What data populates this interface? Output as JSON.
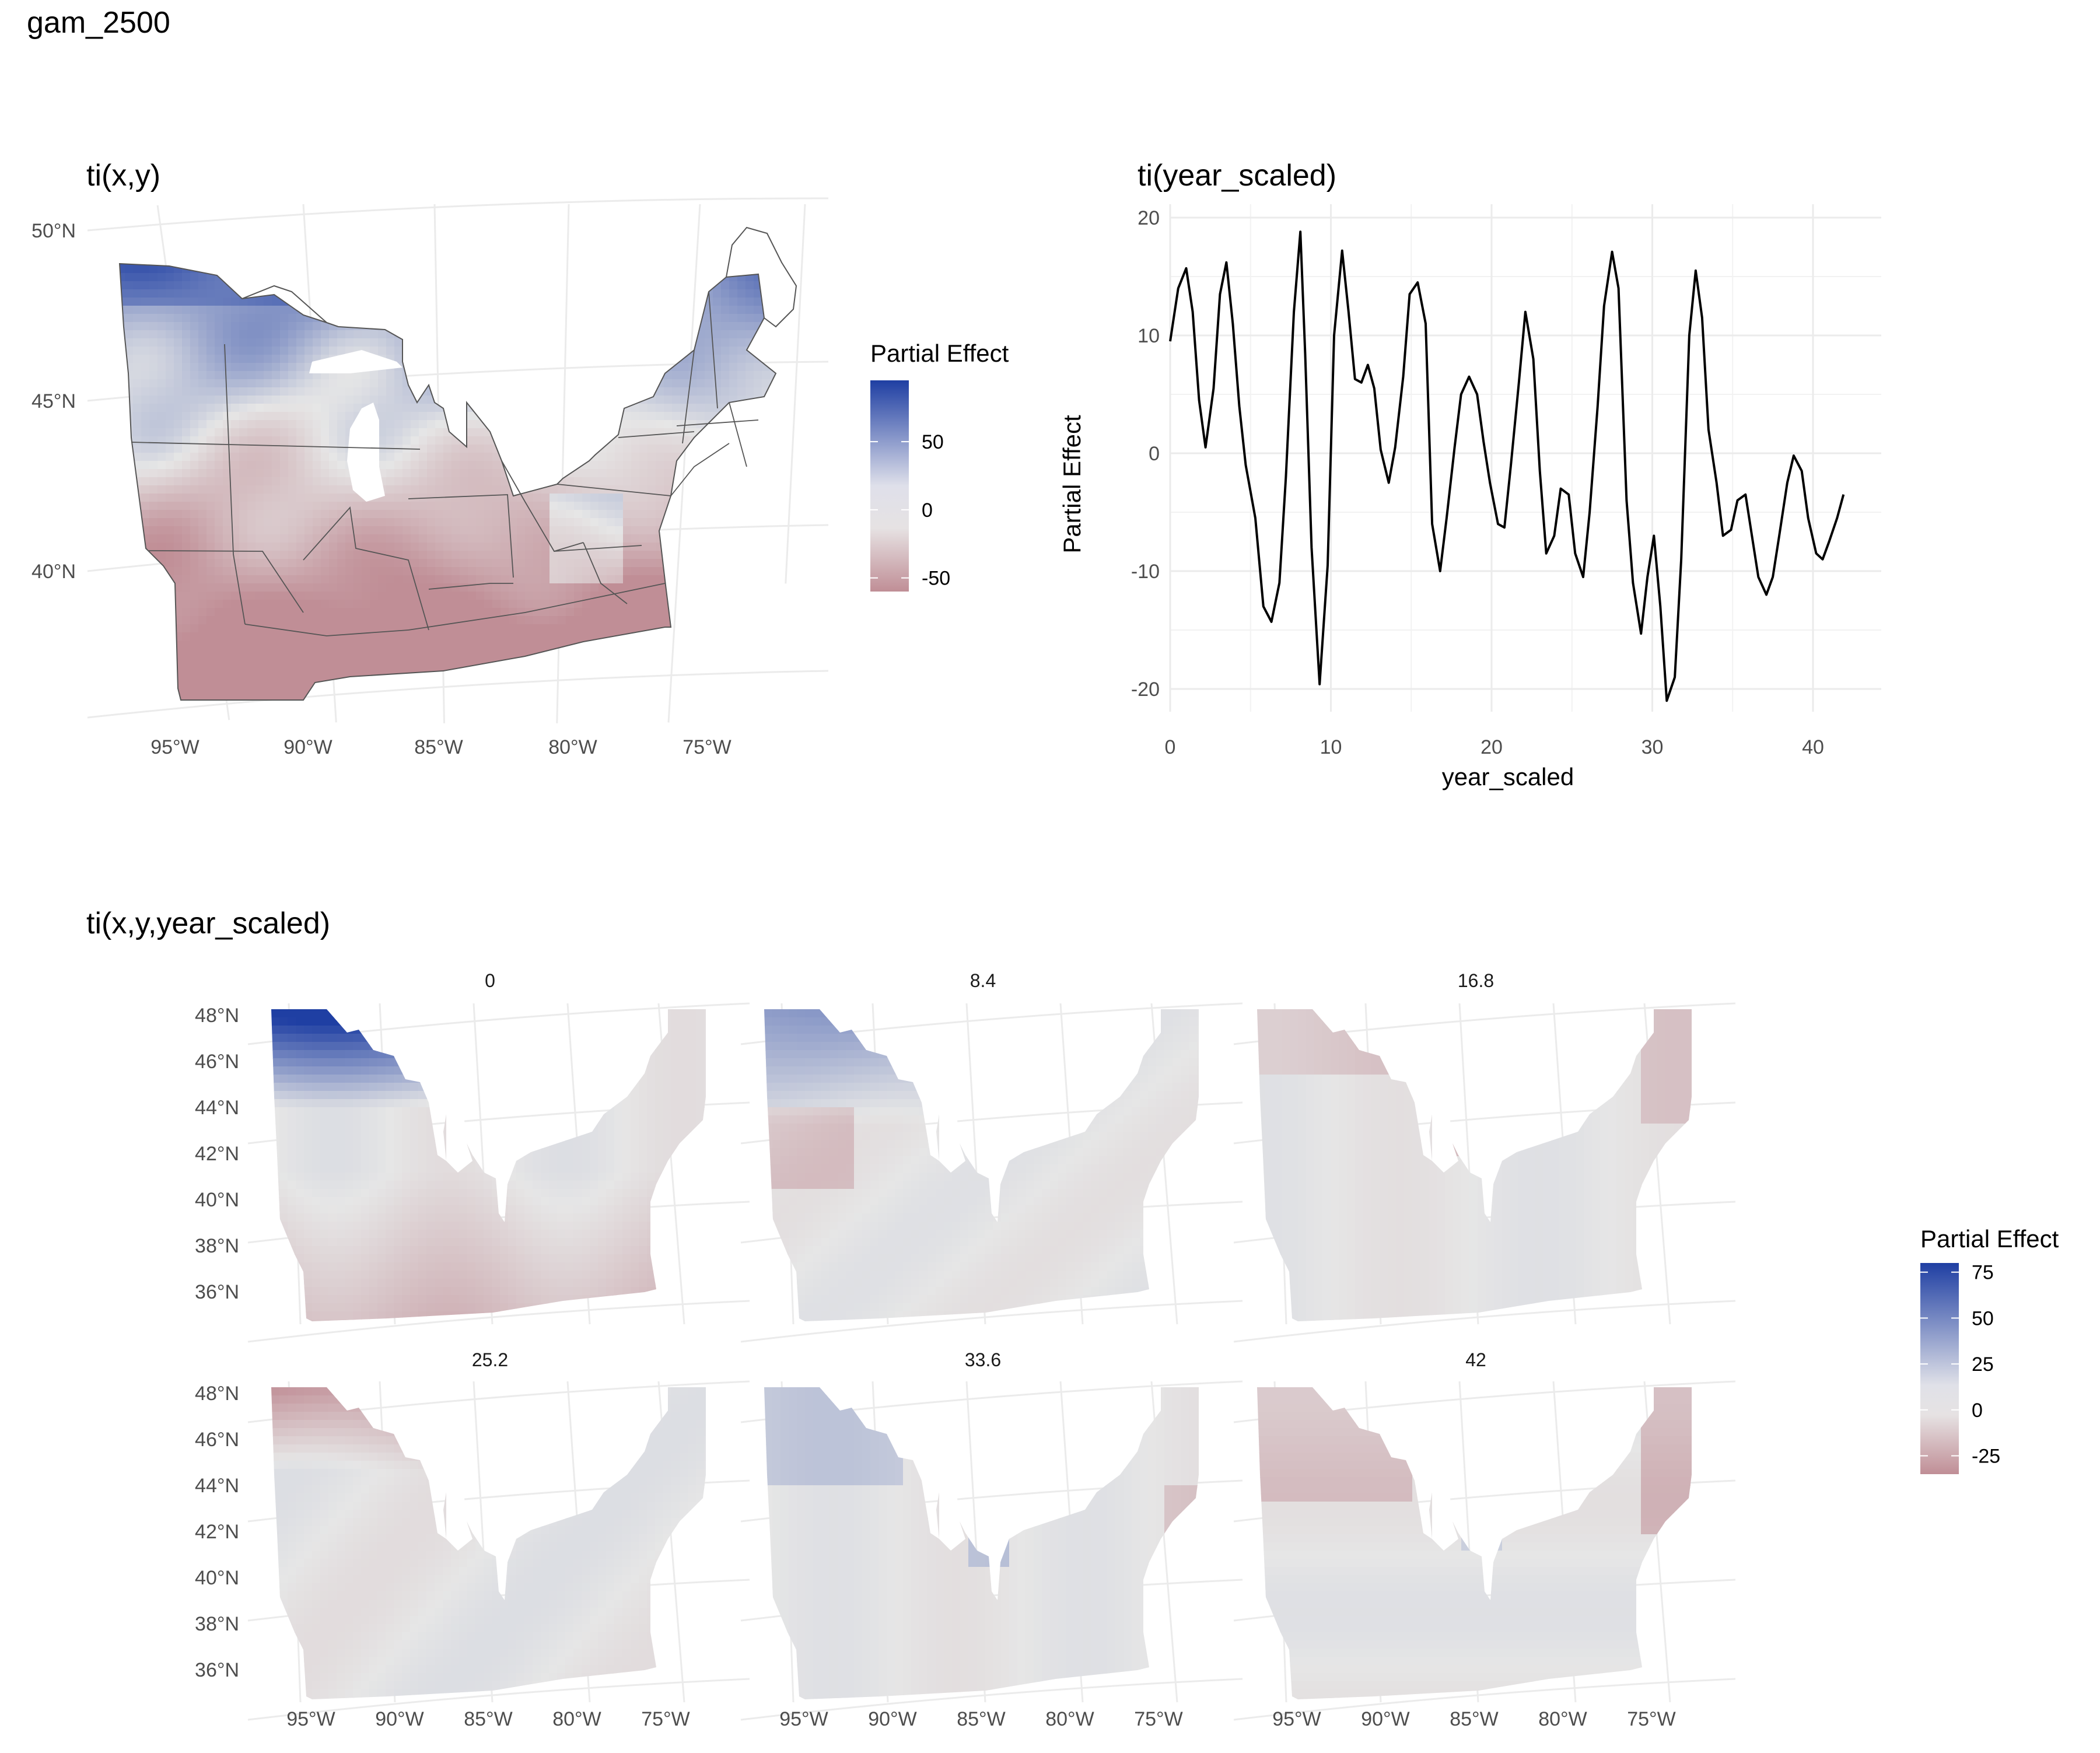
{
  "page_title": "gam_2500",
  "colors": {
    "high": "#1f3fa3",
    "mid": "#e6e6e6",
    "low": "#c08e96",
    "grid": "#ebebeb",
    "line": "#000000",
    "border": "#555555"
  },
  "chart_data": [
    {
      "type": "heatmap",
      "title": "ti(x,y)",
      "x_tick_labels": [
        "95°W",
        "90°W",
        "85°W",
        "80°W",
        "75°W"
      ],
      "y_tick_labels": [
        "40°N",
        "45°N",
        "50°N"
      ],
      "legend": {
        "title": "Partial Effect",
        "ticks": [
          "50",
          "0",
          "-50"
        ],
        "range": [
          -60,
          95
        ]
      },
      "grid": true
    },
    {
      "type": "line",
      "title": "ti(year_scaled)",
      "xlabel": "year_scaled",
      "ylabel": "Partial Effect",
      "x_tick_labels": [
        "0",
        "10",
        "20",
        "30",
        "40"
      ],
      "y_tick_labels": [
        "20",
        "10",
        "0",
        "-10",
        "-20"
      ],
      "xlim": [
        0,
        42
      ],
      "ylim": [
        -22,
        20
      ],
      "grid": true,
      "x": [
        0,
        0.5,
        1,
        1.4,
        1.8,
        2.2,
        2.7,
        3.1,
        3.5,
        3.9,
        4.3,
        4.7,
        5.3,
        5.8,
        6.3,
        6.8,
        7.2,
        7.7,
        8.1,
        8.4,
        8.8,
        9.3,
        9.8,
        10.2,
        10.7,
        11.1,
        11.5,
        11.9,
        12.3,
        12.7,
        13.1,
        13.6,
        14.0,
        14.5,
        14.9,
        15.4,
        15.9,
        16.3,
        16.8,
        17.2,
        17.7,
        18.1,
        18.6,
        19.1,
        19.5,
        19.9,
        20.4,
        20.8,
        21.2,
        21.7,
        22.1,
        22.6,
        23.0,
        23.4,
        23.9,
        24.3,
        24.8,
        25.2,
        25.7,
        26.1,
        26.6,
        27.0,
        27.5,
        27.9,
        28.4,
        28.8,
        29.3,
        29.7,
        30.1,
        30.5,
        30.9,
        31.4,
        31.8,
        32.3,
        32.7,
        33.1,
        33.5,
        34.0,
        34.4,
        34.9,
        35.3,
        35.8,
        36.2,
        36.6,
        37.1,
        37.5,
        37.9,
        38.4,
        38.8,
        39.3,
        39.7,
        40.2,
        40.6,
        41.0,
        41.5,
        41.9
      ],
      "values": [
        9.5,
        14,
        15.7,
        12,
        4.5,
        0.5,
        5.5,
        13.5,
        16.2,
        11,
        4,
        -1,
        -5.5,
        -13,
        -14.3,
        -11,
        -2,
        12,
        18.8,
        8.5,
        -8,
        -19.6,
        -9.5,
        10,
        17.2,
        12,
        6.3,
        6,
        7.5,
        5.5,
        0.3,
        -2.5,
        0.5,
        6.5,
        13.5,
        14.5,
        11,
        -6,
        -10,
        -5.5,
        0.5,
        5,
        6.5,
        5,
        1,
        -2.5,
        -6,
        -6.3,
        -1,
        6,
        12,
        8,
        -1.5,
        -8.5,
        -7,
        -3,
        -3.5,
        -8.5,
        -10.5,
        -5,
        4,
        12.5,
        17.1,
        14,
        -4,
        -11,
        -15.3,
        -10.5,
        -7,
        -13,
        -21,
        -19,
        -9,
        10,
        15.5,
        11.5,
        2,
        -2.5,
        -7,
        -6.5,
        -4,
        -3.5,
        -7,
        -10.5,
        -12,
        -10.5,
        -7,
        -2.5,
        -0.2,
        -1.5,
        -5.5,
        -8.5,
        -9,
        -7.5,
        -5.5,
        -3.5
      ]
    },
    {
      "type": "heatmap",
      "title": "ti(x,y,year_scaled)",
      "facets": [
        "0",
        "8.4",
        "16.8",
        "25.2",
        "33.6",
        "42"
      ],
      "x_tick_labels": [
        "95°W",
        "90°W",
        "85°W",
        "80°W",
        "75°W"
      ],
      "y_tick_labels": [
        "48°N",
        "46°N",
        "44°N",
        "42°N",
        "40°N",
        "38°N",
        "36°N"
      ],
      "legend": {
        "title": "Partial Effect",
        "ticks": [
          "75",
          "50",
          "25",
          "0",
          "-25"
        ],
        "range": [
          -35,
          80
        ]
      },
      "grid": true
    }
  ]
}
